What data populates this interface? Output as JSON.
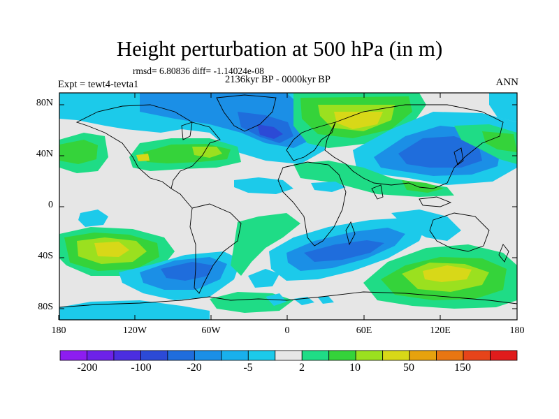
{
  "title": "Height perturbation at 500 hPa (in m)",
  "stats": "rmsd= 6.80836 diff= -1.14024e-08",
  "period": "2136kyr BP - 0000kyr BP",
  "experiment": "Expt = tewt4-tevta1",
  "season": "ANN",
  "y_axis_labels": [
    "80N",
    "40N",
    "0",
    "40S",
    "80S"
  ],
  "x_axis_labels": [
    "180",
    "120W",
    "60W",
    "0",
    "60E",
    "120E",
    "180"
  ],
  "colorbar": {
    "colors": [
      "#8d1df0",
      "#6d22e8",
      "#4b2ee0",
      "#2c4ad6",
      "#1f6ddc",
      "#1b8fe6",
      "#19b0ec",
      "#1ccaea",
      "#e6e6e6",
      "#1fdc86",
      "#35d33a",
      "#9be01f",
      "#d8d818",
      "#e6a20e",
      "#e87612",
      "#e6441a",
      "#e01c1c"
    ],
    "tick_labels": [
      "-200",
      "-100",
      "-20",
      "-5",
      "2",
      "10",
      "50",
      "150"
    ]
  },
  "map_colors": {
    "background": "#e6e6e6",
    "coast": "#000000"
  }
}
